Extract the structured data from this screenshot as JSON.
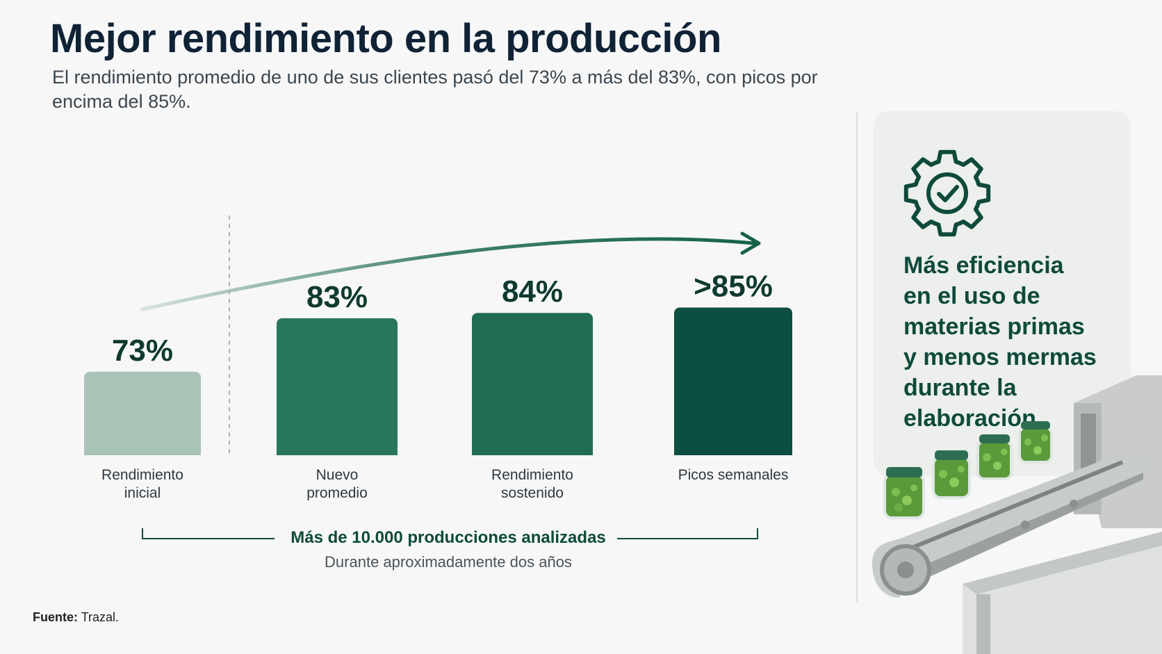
{
  "title": "Mejor rendimiento en la producción",
  "subtitle": "El rendimiento promedio de uno de sus clientes pasó del 73% a más del 83%, con picos por encima del 85%.",
  "chart_data": {
    "type": "bar",
    "categories": [
      "Rendimiento inicial",
      "Nuevo promedio",
      "Rendimiento sostenido",
      "Picos semanales"
    ],
    "values": [
      73,
      83,
      84,
      85
    ],
    "labels": [
      "73%",
      "83%",
      "84%",
      ">85%"
    ],
    "colors": [
      "#a9c3b6",
      "#28775a",
      "#216d52",
      "#0c4e40"
    ],
    "ylim": [
      0,
      100
    ]
  },
  "bracket": {
    "title": "Más de 10.000 producciones analizadas",
    "subtitle": "Durante aproximadamente dos años"
  },
  "panel": {
    "text": "Más eficiencia\nen el uso de\nmaterias primas\ny menos mermas\ndurante la\nelaboración.",
    "icon": "gear-check-icon"
  },
  "source": {
    "label": "Fuente:",
    "value": "Trazal."
  },
  "colors": {
    "accent": "#0e4a3b",
    "title": "#0f2236"
  }
}
